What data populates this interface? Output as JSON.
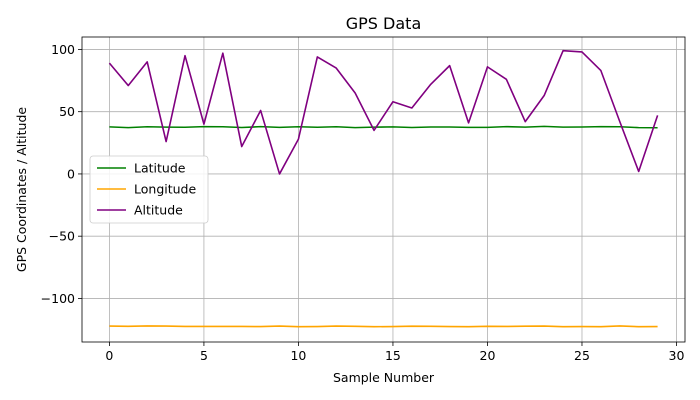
{
  "chart_data": {
    "type": "line",
    "title": "GPS Data",
    "xlabel": "Sample Number",
    "ylabel": "GPS Coordinates / Altitude",
    "xlim": [
      -1.45,
      30.45
    ],
    "ylim": [
      -135,
      110
    ],
    "xticks": [
      0,
      5,
      10,
      15,
      20,
      25,
      30
    ],
    "yticks": [
      -100,
      -50,
      0,
      50,
      100
    ],
    "xtick_labels": [
      "0",
      "5",
      "10",
      "15",
      "20",
      "25",
      "30"
    ],
    "ytick_labels": [
      "−100",
      "−50",
      "0",
      "50",
      "100"
    ],
    "grid": true,
    "legend_position": "center-left",
    "x": [
      0,
      1,
      2,
      3,
      4,
      5,
      6,
      7,
      8,
      9,
      10,
      11,
      12,
      13,
      14,
      15,
      16,
      17,
      18,
      19,
      20,
      21,
      22,
      23,
      24,
      25,
      26,
      27,
      28,
      29
    ],
    "series": [
      {
        "name": "Latitude",
        "color": "#008000",
        "values": [
          37.8,
          37.2,
          37.9,
          37.6,
          37.5,
          38.0,
          37.9,
          37.3,
          38.0,
          37.4,
          37.9,
          37.5,
          37.9,
          37.2,
          37.6,
          37.8,
          37.3,
          37.7,
          37.7,
          37.4,
          37.4,
          38.0,
          37.6,
          38.2,
          37.6,
          37.7,
          38.0,
          37.9,
          37.2,
          37.1
        ]
      },
      {
        "name": "Longitude",
        "color": "#ffa500",
        "values": [
          -122.2,
          -122.4,
          -122.1,
          -122.2,
          -122.5,
          -122.5,
          -122.5,
          -122.5,
          -122.6,
          -122.2,
          -122.7,
          -122.6,
          -122.2,
          -122.4,
          -122.7,
          -122.6,
          -122.3,
          -122.4,
          -122.6,
          -122.7,
          -122.4,
          -122.5,
          -122.3,
          -122.2,
          -122.7,
          -122.6,
          -122.7,
          -122.1,
          -122.7,
          -122.6
        ]
      },
      {
        "name": "Altitude",
        "color": "#800080",
        "values": [
          89,
          71,
          90,
          26,
          95,
          40,
          97,
          22,
          51,
          0,
          28,
          94,
          85,
          65,
          35,
          58,
          53,
          72,
          87,
          41,
          86,
          76,
          42,
          63,
          99,
          98,
          83,
          42,
          2,
          47
        ]
      }
    ]
  }
}
